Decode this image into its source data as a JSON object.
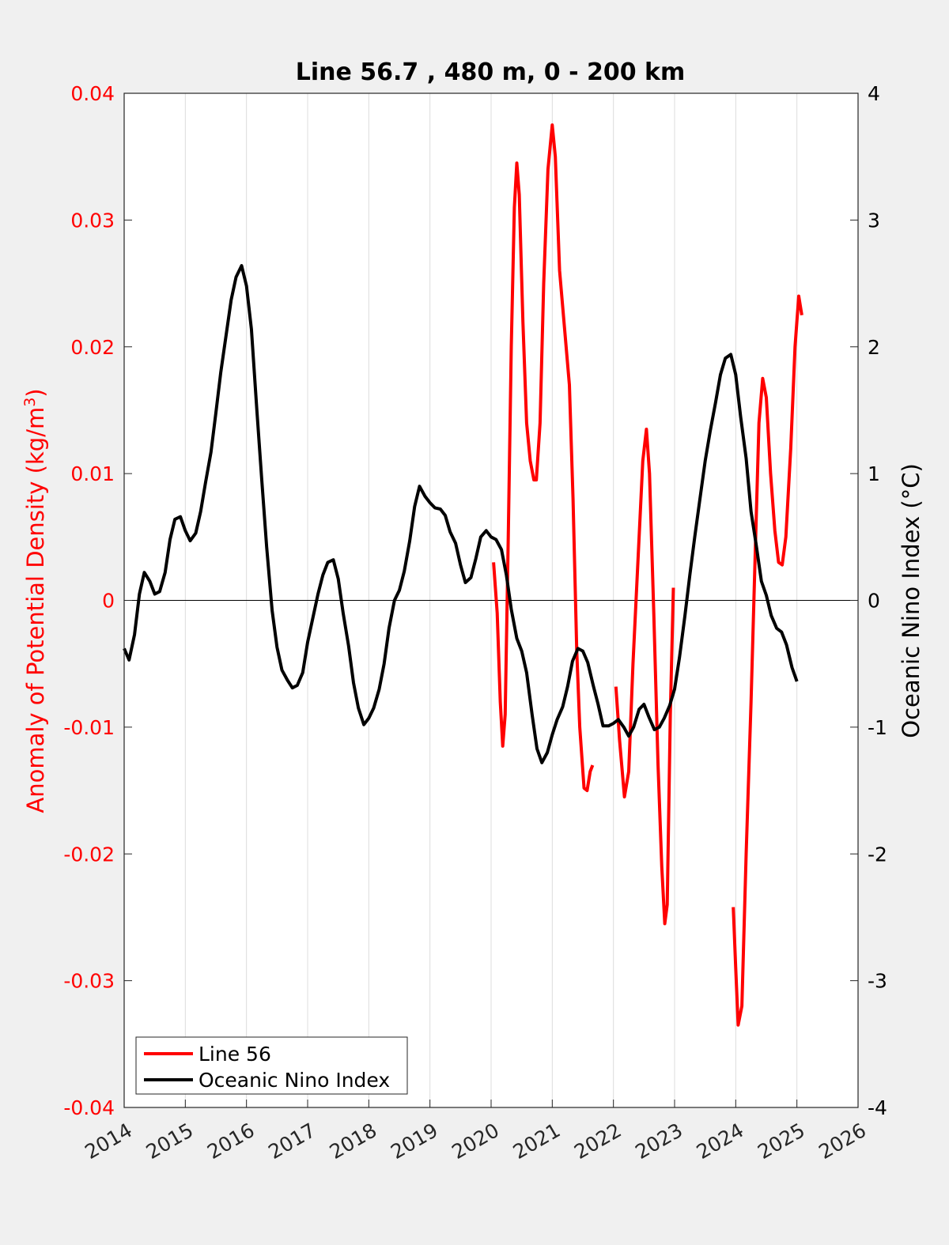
{
  "chart_data": {
    "type": "line",
    "title": "Line 56.7 , 480 m, 0 - 200 km",
    "xlabel": "",
    "ylabel_left": "Anomaly of Potential Density (kg/m",
    "ylabel_left_superscript": "3",
    "ylabel_left_close": ")",
    "ylabel_right": "Oceanic Nino Index (°C)",
    "xlim": [
      2014,
      2026
    ],
    "ylim_left": [
      -0.04,
      0.04
    ],
    "ylim_right": [
      -4,
      4
    ],
    "grid": "vertical",
    "legend_position": "bottom-left",
    "x_ticks": [
      "2014",
      "2015",
      "2016",
      "2017",
      "2018",
      "2019",
      "2020",
      "2021",
      "2022",
      "2023",
      "2024",
      "2025",
      "2026"
    ],
    "y_ticks_left": [
      "-0.04",
      "-0.03",
      "-0.02",
      "-0.01",
      "0",
      "0.01",
      "0.02",
      "0.03",
      "0.04"
    ],
    "y_ticks_right": [
      "-4",
      "-3",
      "-2",
      "-1",
      "0",
      "1",
      "2",
      "3",
      "4"
    ],
    "colors": {
      "line56": "#ff0000",
      "oni": "#000000",
      "left_axis": "#ff0000",
      "right_axis": "#000000"
    },
    "series": [
      {
        "name": "Line 56",
        "axis": "left",
        "segments": [
          [
            [
              2020.04,
              0.003
            ],
            [
              2020.1,
              -0.001
            ],
            [
              2020.15,
              -0.008
            ],
            [
              2020.19,
              -0.0115
            ],
            [
              2020.23,
              -0.009
            ],
            [
              2020.28,
              0.005
            ],
            [
              2020.33,
              0.02
            ],
            [
              2020.38,
              0.031
            ],
            [
              2020.42,
              0.0345
            ],
            [
              2020.46,
              0.032
            ],
            [
              2020.52,
              0.022
            ],
            [
              2020.58,
              0.014
            ],
            [
              2020.64,
              0.011
            ],
            [
              2020.7,
              0.0095
            ],
            [
              2020.74,
              0.0095
            ],
            [
              2020.8,
              0.014
            ],
            [
              2020.86,
              0.025
            ],
            [
              2020.93,
              0.034
            ],
            [
              2021.0,
              0.0375
            ],
            [
              2021.05,
              0.035
            ],
            [
              2021.12,
              0.026
            ],
            [
              2021.2,
              0.0215
            ],
            [
              2021.28,
              0.017
            ],
            [
              2021.34,
              0.008
            ],
            [
              2021.4,
              -0.004
            ],
            [
              2021.45,
              -0.01
            ],
            [
              2021.52,
              -0.0148
            ],
            [
              2021.57,
              -0.015
            ],
            [
              2021.62,
              -0.0135
            ],
            [
              2021.66,
              -0.013
            ]
          ],
          [
            [
              2022.04,
              -0.0068
            ],
            [
              2022.1,
              -0.011
            ],
            [
              2022.18,
              -0.0155
            ],
            [
              2022.25,
              -0.0135
            ],
            [
              2022.32,
              -0.005
            ],
            [
              2022.4,
              0.003
            ],
            [
              2022.48,
              0.011
            ],
            [
              2022.54,
              0.0135
            ],
            [
              2022.59,
              0.01
            ],
            [
              2022.66,
              -0.001
            ],
            [
              2022.73,
              -0.013
            ],
            [
              2022.79,
              -0.021
            ],
            [
              2022.84,
              -0.0255
            ],
            [
              2022.88,
              -0.024
            ],
            [
              2022.93,
              -0.009
            ],
            [
              2022.98,
              0.001
            ]
          ],
          [
            [
              2023.96,
              -0.0242
            ],
            [
              2024.0,
              -0.029
            ],
            [
              2024.04,
              -0.0335
            ],
            [
              2024.1,
              -0.032
            ],
            [
              2024.17,
              -0.02
            ],
            [
              2024.25,
              -0.008
            ],
            [
              2024.32,
              0.004
            ],
            [
              2024.38,
              0.014
            ],
            [
              2024.44,
              0.0175
            ],
            [
              2024.5,
              0.016
            ],
            [
              2024.57,
              0.01
            ],
            [
              2024.64,
              0.0055
            ],
            [
              2024.7,
              0.003
            ],
            [
              2024.76,
              0.0028
            ],
            [
              2024.82,
              0.005
            ],
            [
              2024.9,
              0.012
            ],
            [
              2024.97,
              0.02
            ],
            [
              2025.03,
              0.024
            ],
            [
              2025.08,
              0.0225
            ]
          ]
        ]
      },
      {
        "name": "Oceanic Nino Index",
        "axis": "right",
        "segments": [
          [
            [
              2014.0,
              -0.38
            ],
            [
              2014.08,
              -0.47
            ],
            [
              2014.17,
              -0.27
            ],
            [
              2014.25,
              0.05
            ],
            [
              2014.33,
              0.22
            ],
            [
              2014.42,
              0.15
            ],
            [
              2014.5,
              0.05
            ],
            [
              2014.58,
              0.07
            ],
            [
              2014.67,
              0.22
            ],
            [
              2014.75,
              0.48
            ],
            [
              2014.83,
              0.64
            ],
            [
              2014.92,
              0.66
            ],
            [
              2015.0,
              0.55
            ],
            [
              2015.08,
              0.47
            ],
            [
              2015.17,
              0.53
            ],
            [
              2015.25,
              0.7
            ],
            [
              2015.33,
              0.93
            ],
            [
              2015.42,
              1.17
            ],
            [
              2015.5,
              1.48
            ],
            [
              2015.58,
              1.8
            ],
            [
              2015.67,
              2.1
            ],
            [
              2015.75,
              2.37
            ],
            [
              2015.83,
              2.55
            ],
            [
              2015.92,
              2.64
            ],
            [
              2016.0,
              2.48
            ],
            [
              2016.08,
              2.14
            ],
            [
              2016.17,
              1.5
            ],
            [
              2016.25,
              0.95
            ],
            [
              2016.33,
              0.42
            ],
            [
              2016.42,
              -0.08
            ],
            [
              2016.5,
              -0.37
            ],
            [
              2016.58,
              -0.55
            ],
            [
              2016.67,
              -0.63
            ],
            [
              2016.75,
              -0.69
            ],
            [
              2016.83,
              -0.67
            ],
            [
              2016.92,
              -0.57
            ],
            [
              2017.0,
              -0.33
            ],
            [
              2017.08,
              -0.15
            ],
            [
              2017.17,
              0.05
            ],
            [
              2017.25,
              0.2
            ],
            [
              2017.33,
              0.3
            ],
            [
              2017.42,
              0.32
            ],
            [
              2017.5,
              0.17
            ],
            [
              2017.58,
              -0.1
            ],
            [
              2017.67,
              -0.36
            ],
            [
              2017.75,
              -0.65
            ],
            [
              2017.83,
              -0.85
            ],
            [
              2017.92,
              -0.98
            ],
            [
              2018.0,
              -0.93
            ],
            [
              2018.08,
              -0.85
            ],
            [
              2018.17,
              -0.7
            ],
            [
              2018.25,
              -0.5
            ],
            [
              2018.33,
              -0.22
            ],
            [
              2018.42,
              0.0
            ],
            [
              2018.5,
              0.08
            ],
            [
              2018.58,
              0.23
            ],
            [
              2018.67,
              0.47
            ],
            [
              2018.75,
              0.74
            ],
            [
              2018.83,
              0.9
            ],
            [
              2018.92,
              0.82
            ],
            [
              2019.0,
              0.77
            ],
            [
              2019.08,
              0.73
            ],
            [
              2019.17,
              0.72
            ],
            [
              2019.25,
              0.67
            ],
            [
              2019.33,
              0.54
            ],
            [
              2019.42,
              0.45
            ],
            [
              2019.5,
              0.28
            ],
            [
              2019.58,
              0.14
            ],
            [
              2019.67,
              0.18
            ],
            [
              2019.75,
              0.33
            ],
            [
              2019.83,
              0.5
            ],
            [
              2019.92,
              0.55
            ],
            [
              2020.0,
              0.5
            ],
            [
              2020.08,
              0.48
            ],
            [
              2020.17,
              0.4
            ],
            [
              2020.25,
              0.2
            ],
            [
              2020.33,
              -0.07
            ],
            [
              2020.42,
              -0.3
            ],
            [
              2020.5,
              -0.4
            ],
            [
              2020.58,
              -0.57
            ],
            [
              2020.67,
              -0.9
            ],
            [
              2020.75,
              -1.17
            ],
            [
              2020.83,
              -1.28
            ],
            [
              2020.92,
              -1.2
            ],
            [
              2021.0,
              -1.06
            ],
            [
              2021.08,
              -0.94
            ],
            [
              2021.17,
              -0.84
            ],
            [
              2021.25,
              -0.68
            ],
            [
              2021.33,
              -0.48
            ],
            [
              2021.42,
              -0.38
            ],
            [
              2021.5,
              -0.4
            ],
            [
              2021.58,
              -0.49
            ],
            [
              2021.67,
              -0.67
            ],
            [
              2021.75,
              -0.82
            ],
            [
              2021.83,
              -0.99
            ],
            [
              2021.92,
              -0.99
            ],
            [
              2022.0,
              -0.97
            ],
            [
              2022.08,
              -0.94
            ],
            [
              2022.17,
              -1.0
            ],
            [
              2022.25,
              -1.07
            ],
            [
              2022.33,
              -1.0
            ],
            [
              2022.42,
              -0.86
            ],
            [
              2022.5,
              -0.82
            ],
            [
              2022.58,
              -0.92
            ],
            [
              2022.67,
              -1.02
            ],
            [
              2022.75,
              -1.0
            ],
            [
              2022.83,
              -0.93
            ],
            [
              2022.92,
              -0.83
            ],
            [
              2023.0,
              -0.7
            ],
            [
              2023.08,
              -0.45
            ],
            [
              2023.17,
              -0.12
            ],
            [
              2023.25,
              0.2
            ],
            [
              2023.33,
              0.5
            ],
            [
              2023.42,
              0.82
            ],
            [
              2023.5,
              1.1
            ],
            [
              2023.58,
              1.33
            ],
            [
              2023.67,
              1.56
            ],
            [
              2023.75,
              1.78
            ],
            [
              2023.83,
              1.91
            ],
            [
              2023.92,
              1.94
            ],
            [
              2024.0,
              1.78
            ],
            [
              2024.08,
              1.45
            ],
            [
              2024.17,
              1.12
            ],
            [
              2024.25,
              0.7
            ],
            [
              2024.33,
              0.45
            ],
            [
              2024.42,
              0.15
            ],
            [
              2024.5,
              0.04
            ],
            [
              2024.58,
              -0.12
            ],
            [
              2024.67,
              -0.22
            ],
            [
              2024.75,
              -0.25
            ],
            [
              2024.83,
              -0.35
            ],
            [
              2024.92,
              -0.53
            ],
            [
              2025.0,
              -0.64
            ]
          ]
        ]
      }
    ]
  },
  "legend": {
    "items": [
      {
        "label": "Line 56",
        "color": "#ff0000"
      },
      {
        "label": "Oceanic Nino Index",
        "color": "#000000"
      }
    ]
  }
}
